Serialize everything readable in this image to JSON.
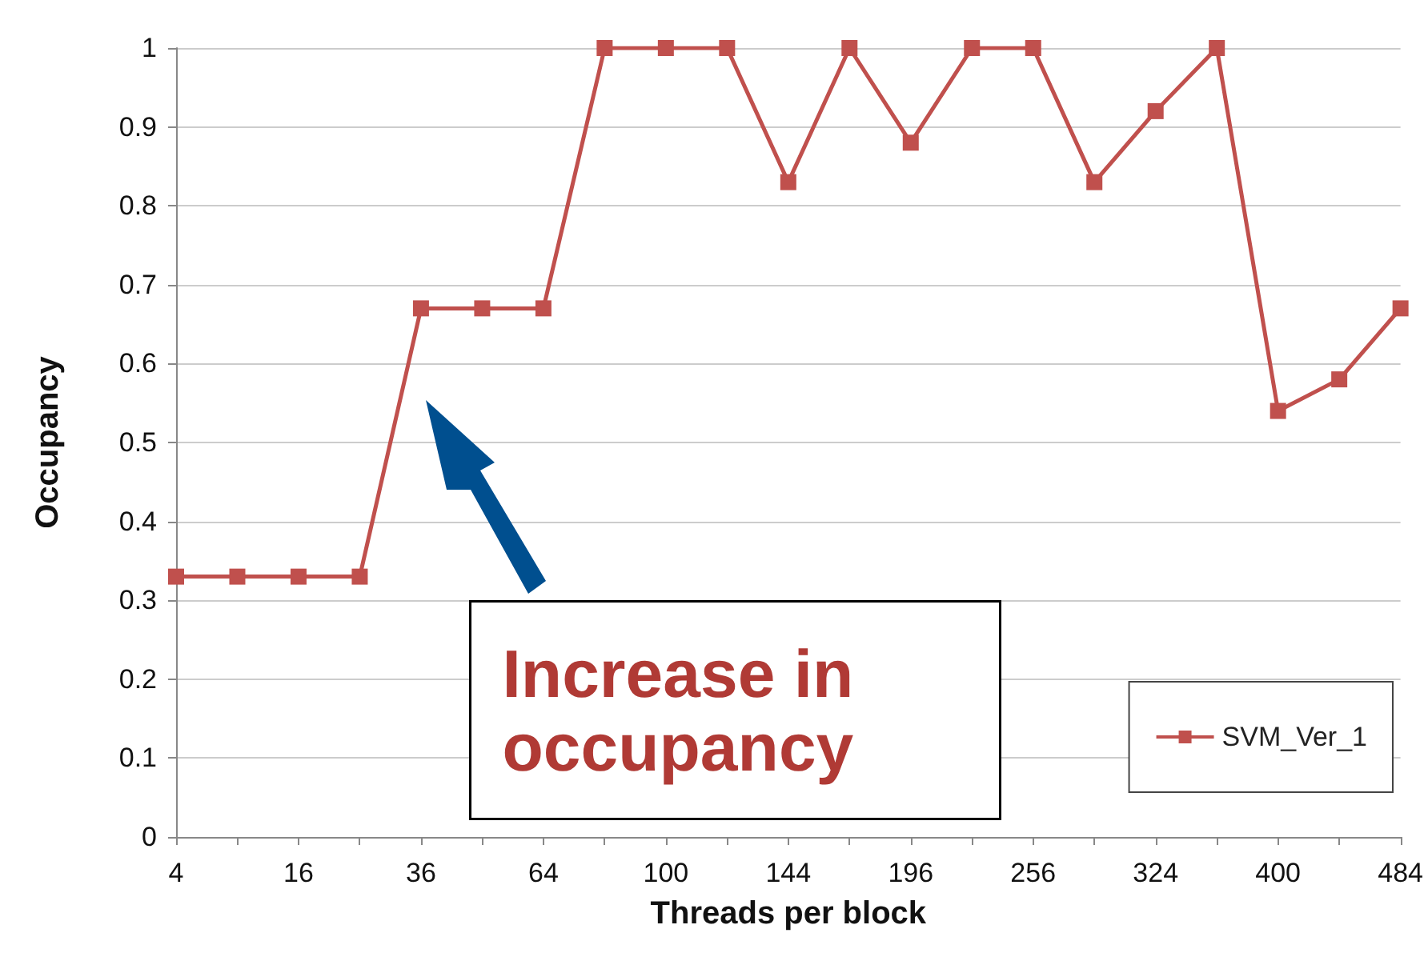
{
  "chart_data": {
    "type": "line",
    "xlabel": "Threads per block",
    "ylabel": "Occupancy",
    "categories": [
      "4",
      null,
      "16",
      null,
      "36",
      null,
      "64",
      null,
      "100",
      null,
      "144",
      null,
      "196",
      null,
      "256",
      null,
      "324",
      null,
      "400",
      null,
      "484"
    ],
    "series": [
      {
        "name": "SVM_Ver_1",
        "color": "#c0504d",
        "values": [
          0.33,
          0.33,
          0.33,
          0.33,
          0.67,
          0.67,
          0.67,
          1,
          1,
          1,
          0.83,
          1,
          0.88,
          1,
          1,
          0.83,
          0.92,
          1,
          0.54,
          0.58,
          0.67
        ]
      }
    ],
    "ylim": [
      0,
      1
    ],
    "yticks": [
      0,
      0.1,
      0.2,
      0.3,
      0.4,
      0.5,
      0.6,
      0.7,
      0.8,
      0.9,
      1
    ],
    "grid": "y",
    "legend": "bottom right",
    "marker": "square",
    "line_style": "solid",
    "annotations": [
      "Increase in occupancy"
    ]
  }
}
